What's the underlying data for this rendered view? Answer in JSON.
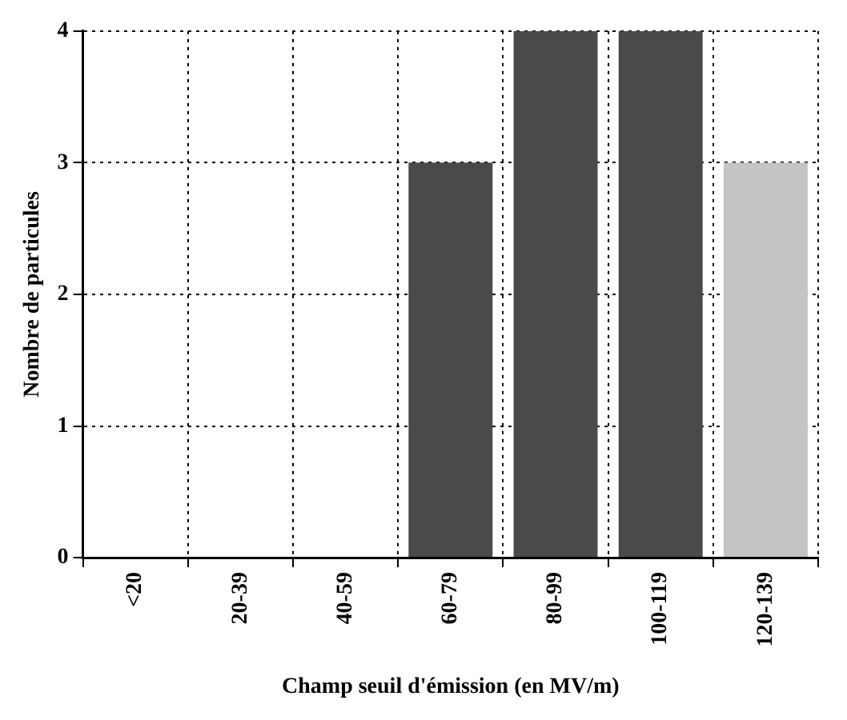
{
  "chart_data": {
    "type": "bar",
    "xlabel": "Champ seuil d'émission (en MV/m)",
    "ylabel": "Nombre de particules",
    "categories": [
      "<20",
      "20-39",
      "40-59",
      "60-79",
      "80-99",
      "100-119",
      "120-139"
    ],
    "values": [
      0,
      0,
      0,
      3,
      4,
      4,
      3
    ],
    "colors": [
      "#4a4a4a",
      "#4a4a4a",
      "#4a4a4a",
      "#4a4a4a",
      "#4a4a4a",
      "#4a4a4a",
      "#c4c4c4"
    ],
    "ylim": [
      0,
      4
    ],
    "yticks": [
      0,
      1,
      2,
      3,
      4
    ],
    "grid": true,
    "legend": false
  }
}
